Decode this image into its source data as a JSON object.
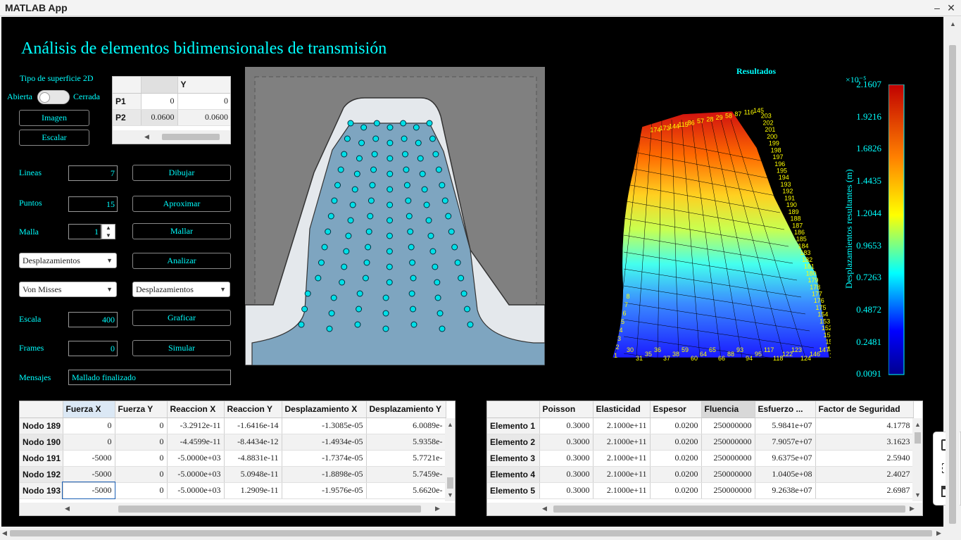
{
  "window": {
    "title": "MATLAB App"
  },
  "app": {
    "title": "Análisis de elementos bidimensionales de transmisión"
  },
  "surface": {
    "label": "Tipo de superficie 2D",
    "open": "Abierta",
    "closed": "Cerrada"
  },
  "buttons": {
    "imagen": "Imagen",
    "escalar": "Escalar",
    "dibujar": "Dibujar",
    "aproximar": "Aproximar",
    "mallar": "Mallar",
    "analizar": "Analizar",
    "graficar": "Graficar",
    "simular": "Simular"
  },
  "fields": {
    "lineas_label": "Lineas",
    "lineas": "7",
    "puntos_label": "Puntos",
    "puntos": "15",
    "malla_label": "Malla",
    "malla": "1",
    "escala_label": "Escala",
    "escala": "400",
    "frames_label": "Frames",
    "frames": "0",
    "mensajes_label": "Mensajes",
    "mensajes": "Mallado finalizado"
  },
  "dropdowns": {
    "analysis": "Desplazamientos",
    "criterion": "Von Misses",
    "plot": "Desplazamientos"
  },
  "points_table": {
    "headers": [
      "",
      "Y"
    ],
    "rows": [
      {
        "name": "P1",
        "c1": "0",
        "c2": "0"
      },
      {
        "name": "P2",
        "c1": "0.0600",
        "c2": "0.0600"
      }
    ]
  },
  "nodes_table": {
    "headers": [
      "Fuerza X",
      "Fuerza Y",
      "Reaccion X",
      "Reaccion Y",
      "Desplazamiento X",
      "Desplazamiento Y"
    ],
    "rows": [
      {
        "name": "Nodo 189",
        "v": [
          "0",
          "0",
          "-3.2912e-11",
          "-1.6416e-14",
          "-1.3085e-05",
          "6.0089e-"
        ]
      },
      {
        "name": "Nodo 190",
        "v": [
          "0",
          "0",
          "-4.4599e-11",
          "-8.4434e-12",
          "-1.4934e-05",
          "5.9358e-"
        ]
      },
      {
        "name": "Nodo 191",
        "v": [
          "-5000",
          "0",
          "-5.0000e+03",
          "-4.8831e-11",
          "-1.7374e-05",
          "5.7721e-"
        ]
      },
      {
        "name": "Nodo 192",
        "v": [
          "-5000",
          "0",
          "-5.0000e+03",
          "5.0948e-11",
          "-1.8898e-05",
          "5.7459e-"
        ]
      },
      {
        "name": "Nodo 193",
        "v": [
          "-5000",
          "0",
          "-5.0000e+03",
          "1.2909e-11",
          "-1.9576e-05",
          "5.6620e-"
        ]
      }
    ]
  },
  "elements_table": {
    "headers": [
      "Poisson",
      "Elasticidad",
      "Espesor",
      "Fluencia",
      "Esfuerzo ...",
      "Factor de Seguridad"
    ],
    "rows": [
      {
        "name": "Elemento 1",
        "v": [
          "0.3000",
          "2.1000e+11",
          "0.0200",
          "250000000",
          "5.9841e+07",
          "4.1778"
        ]
      },
      {
        "name": "Elemento 2",
        "v": [
          "0.3000",
          "2.1000e+11",
          "0.0200",
          "250000000",
          "7.9057e+07",
          "3.1623"
        ]
      },
      {
        "name": "Elemento 3",
        "v": [
          "0.3000",
          "2.1000e+11",
          "0.0200",
          "250000000",
          "9.6375e+07",
          "2.5940"
        ]
      },
      {
        "name": "Elemento 4",
        "v": [
          "0.3000",
          "2.1000e+11",
          "0.0200",
          "250000000",
          "1.0405e+08",
          "2.4027"
        ]
      },
      {
        "name": "Elemento 5",
        "v": [
          "0.3000",
          "2.1000e+11",
          "0.0200",
          "250000000",
          "9.2638e+07",
          "2.6987"
        ]
      }
    ]
  },
  "results": {
    "title": "Resultados",
    "colorbar_label": "Desplazamientos resultantes (m)",
    "exponent": "×10⁻⁵",
    "ticks": [
      "2.1607",
      "1.9216",
      "1.6826",
      "1.4435",
      "1.2044",
      "0.9653",
      "0.7263",
      "0.4872",
      "0.2481",
      "0.0091"
    ],
    "node_labels": [
      "1",
      "2",
      "3",
      "4",
      "5",
      "6",
      "7",
      "8",
      "30",
      "31",
      "35",
      "36",
      "37",
      "38",
      "59",
      "60",
      "64",
      "65",
      "66",
      "88",
      "93",
      "94",
      "95",
      "117",
      "118",
      "122",
      "123",
      "124",
      "146",
      "147",
      "148",
      "149",
      "150",
      "151",
      "152",
      "153",
      "154",
      "175",
      "176",
      "177",
      "178",
      "179",
      "180",
      "181",
      "182",
      "183",
      "184",
      "185",
      "186",
      "187",
      "188",
      "189",
      "190",
      "191",
      "192",
      "193",
      "194",
      "195",
      "196",
      "197",
      "198",
      "199",
      "200",
      "201",
      "202",
      "203",
      "145",
      "116",
      "87",
      "58",
      "29",
      "28",
      "57",
      "86",
      "115",
      "144",
      "173",
      "174"
    ]
  },
  "colors": {
    "accent": "#00ffff",
    "background": "#000000"
  }
}
